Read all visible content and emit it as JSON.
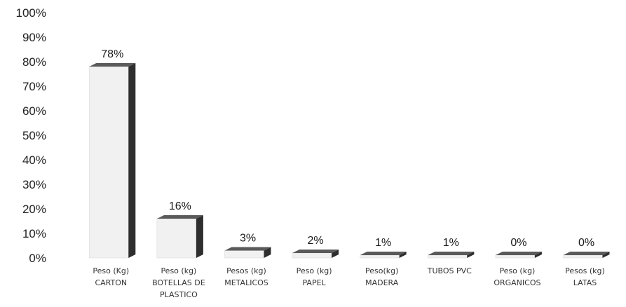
{
  "chart_data": {
    "type": "bar",
    "title": "",
    "xlabel": "",
    "ylabel": "",
    "ylim": [
      0,
      100
    ],
    "yticks": [
      "0%",
      "10%",
      "20%",
      "30%",
      "40%",
      "50%",
      "60%",
      "70%",
      "80%",
      "90%",
      "100%"
    ],
    "categories": [
      [
        "Peso (Kg)",
        "CARTON"
      ],
      [
        "Peso (kg)",
        "BOTELLAS DE",
        "PLASTICO"
      ],
      [
        "Pesos (kg)",
        "METALICOS"
      ],
      [
        "Peso (kg)",
        "PAPEL"
      ],
      [
        "Peso(kg)",
        "MADERA"
      ],
      [
        "TUBOS PVC"
      ],
      [
        "Peso (kg)",
        "ORGANICOS"
      ],
      [
        "Pesos (kg)",
        "LATAS"
      ]
    ],
    "values": [
      78,
      16,
      3,
      2,
      1,
      1,
      0,
      0
    ],
    "data_labels": [
      "78%",
      "16%",
      "3%",
      "2%",
      "1%",
      "1%",
      "0%",
      "0%"
    ],
    "grid": false,
    "legend": "none",
    "colors": {
      "bar_front": "#f1f1f1",
      "bar_side": "#2e2e2e",
      "bar_top": "#5a5a5a"
    }
  }
}
